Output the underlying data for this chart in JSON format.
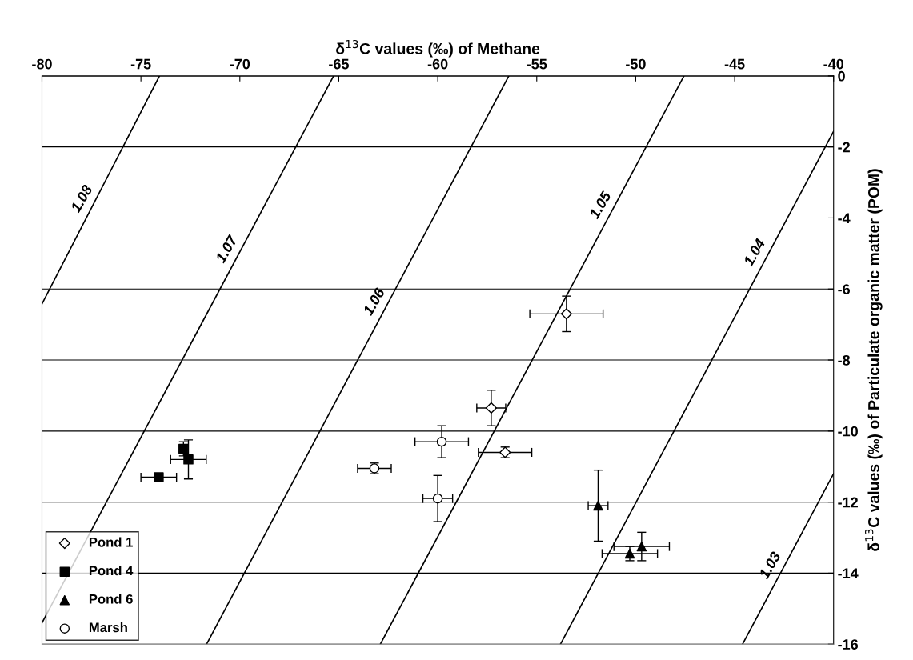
{
  "chart_data": {
    "type": "scatter",
    "xlabel": "δ$^{13}$C values (‰) of Methane",
    "ylabel": "δ$^{13}$C values (‰) of Particulate organic matter (POM)",
    "xlim": [
      -80,
      -40
    ],
    "xticks": [
      -80,
      -75,
      -70,
      -65,
      -60,
      -55,
      -50,
      -45,
      -40
    ],
    "ylim": [
      -16,
      0
    ],
    "yticks": [
      -16,
      -14,
      -12,
      -10,
      -8,
      -6,
      -4,
      -2,
      0
    ],
    "grid": "y",
    "legend": "bottom left",
    "series": [
      {
        "name": "Pond 1",
        "marker": "diamond",
        "color": "#ffffff",
        "x": [
          -53.5,
          -57.3,
          -56.6
        ],
        "values": [
          -6.7,
          -9.35,
          -10.6
        ],
        "xerrors": [
          1.85,
          0.73,
          1.35
        ],
        "errors": [
          0.5,
          0.5,
          0.15
        ]
      },
      {
        "name": "Pond 4",
        "marker": "square",
        "color": "#000000",
        "x": [
          -72.85,
          -72.6,
          -74.1
        ],
        "values": [
          -10.5,
          -10.8,
          -11.3
        ],
        "xerrors": [
          null,
          0.9,
          0.9
        ],
        "errors": [
          0.2,
          0.55,
          0.05
        ]
      },
      {
        "name": "Pond 6",
        "marker": "triangle",
        "color": "#000000",
        "x": [
          -51.9,
          -50.3,
          -49.7
        ],
        "values": [
          -12.1,
          -13.45,
          -13.25
        ],
        "xerrors": [
          0.5,
          1.4,
          1.4
        ],
        "errors": [
          1.0,
          0.2,
          0.4
        ]
      },
      {
        "name": "Marsh",
        "marker": "circle",
        "color": "#ffffff",
        "x": [
          -59.8,
          -63.2,
          -60.0
        ],
        "values": [
          -10.3,
          -11.05,
          -11.9
        ],
        "xerrors": [
          1.35,
          0.85,
          0.75
        ],
        "errors": [
          0.45,
          0.15,
          0.65
        ]
      },
      {
        "name": "1.08",
        "type": "line",
        "color": "#000000",
        "x": [
          -74.06,
          -80
        ],
        "values": [
          0,
          -6.42
        ]
      },
      {
        "name": "1.07",
        "type": "line",
        "color": "#000000",
        "x": [
          -65.26,
          -80
        ],
        "values": [
          0,
          -15.4
        ]
      },
      {
        "name": "1.06",
        "type": "line",
        "color": "#000000",
        "x": [
          -56.41,
          -71.68
        ],
        "values": [
          0,
          -16
        ]
      },
      {
        "name": "1.05",
        "type": "line",
        "color": "#000000",
        "x": [
          -47.56,
          -62.9
        ],
        "values": [
          0,
          -16
        ]
      },
      {
        "name": "1.04",
        "type": "line",
        "color": "#000000",
        "x": [
          -40,
          -53.8
        ],
        "values": [
          -1.56,
          -16
        ]
      },
      {
        "name": "1.03",
        "type": "line",
        "color": "#000000",
        "x": [
          -40,
          -44.6
        ],
        "values": [
          -11.2,
          -16
        ]
      }
    ]
  }
}
